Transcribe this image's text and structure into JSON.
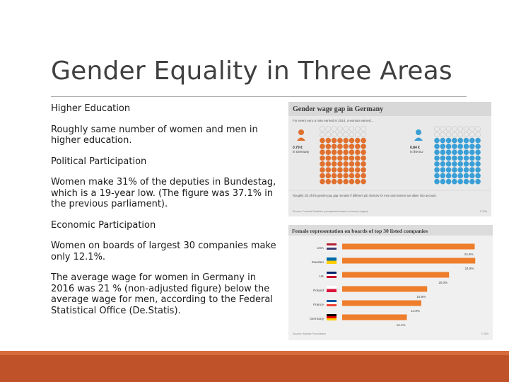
{
  "title": "Gender Equality in Three Areas",
  "sections": [
    {
      "heading": "Higher Education",
      "text": "Roughly same number of women and men in higher education."
    },
    {
      "heading": "Political Participation",
      "text": "Women make 31% of the deputies in Bundestag, which is a 19-year low. (The figure was 37.1% in the previous parliament)."
    },
    {
      "heading": "Economic Participation",
      "text": "Women on boards of largest 30 companies make only 12.1%."
    },
    {
      "heading": "",
      "text": "The average wage for women in Germany in 2016 was 21 % (non-adjusted figure) below the average wage for men, according to the Federal Statistical Office (De.Statis)."
    }
  ],
  "wage_gap_image": {
    "title": "Gender wage gap in Germany",
    "subtitle": "For every euro a man earned in 2014, a woman earned...",
    "germany_value": "0.79 €",
    "germany_label": "in Germany",
    "eu_value": "0.84 €",
    "eu_label": "in the EU",
    "note": "Roughly 2/3 of the gender pay gap remains if different job choices for men and women are taken into account.",
    "source": "Source: Federal Statistics (comparison based on hourly wages)",
    "credit": "© DW",
    "colors": {
      "woman": "#e0702e",
      "man": "#3a9fd6",
      "header_bg": "#d8d8d8"
    }
  },
  "board_image": {
    "title": "Female representation on boards of top 30 listed companies",
    "source": "Source: Böckler Foundation",
    "credit": "© DW",
    "bar_color": "#ee7d2c",
    "chart_data": {
      "type": "bar",
      "categories": [
        "USA",
        "Sweden",
        "UK",
        "Poland",
        "France",
        "Germany"
      ],
      "values": [
        24.8,
        24.9,
        20.0,
        15.9,
        14.8,
        12.1
      ],
      "labels": [
        "24.8%",
        "24.9%",
        "20.0%",
        "15.9%",
        "14.8%",
        "12.1%"
      ]
    }
  }
}
